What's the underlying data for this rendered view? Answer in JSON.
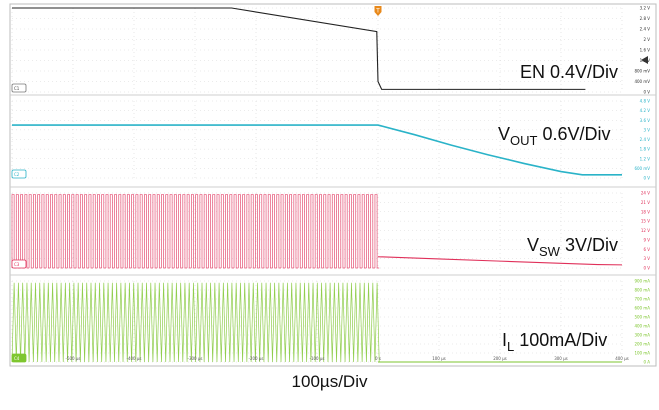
{
  "chart_data": {
    "type": "line",
    "x_unit": "µs",
    "x_ticks": [
      "-500 µs",
      "-400 µs",
      "-300 µs",
      "-200 µs",
      "-100 µs",
      "0 s",
      "100 µs",
      "200 µs",
      "300 µs",
      "400 µs"
    ],
    "timebase": "100µs/Div",
    "channels": [
      {
        "id": "C1",
        "name": "EN",
        "label_main": "EN 0.4V/Div",
        "label_sub": "",
        "label_tail": "",
        "color": "#222222",
        "ticks": [
          "3.2 V",
          "2.8 V",
          "2.4 V",
          "2 V",
          "1.6 V",
          "1.2 V",
          "800 mV",
          "400 mV",
          "0 V"
        ],
        "points": [
          [
            -600,
            3.2
          ],
          [
            -240,
            3.2
          ],
          [
            -2,
            2.3
          ],
          [
            0,
            0.4
          ],
          [
            6,
            0.1
          ],
          [
            340,
            0.1
          ]
        ]
      },
      {
        "id": "C2",
        "name": "VOUT",
        "label_main": "V",
        "label_sub": "OUT",
        "label_tail": " 0.6V/Div",
        "color": "#2ab3c8",
        "ticks": [
          "4.8 V",
          "4.2 V",
          "3.6 V",
          "3 V",
          "2.4 V",
          "1.8 V",
          "1.2 V",
          "600 mV",
          "0 V"
        ],
        "points": [
          [
            -600,
            3.3
          ],
          [
            0,
            3.3
          ],
          [
            60,
            2.7
          ],
          [
            120,
            2.05
          ],
          [
            180,
            1.45
          ],
          [
            240,
            0.9
          ],
          [
            300,
            0.4
          ],
          [
            335,
            0.2
          ],
          [
            400,
            0.2
          ]
        ]
      },
      {
        "id": "C3",
        "name": "VSW",
        "label_main": "V",
        "label_sub": "SW",
        "label_tail": " 3V/Div",
        "color": "#e0305a",
        "ticks": [
          "24 V",
          "21 V",
          "18 V",
          "15 V",
          "12 V",
          "9 V",
          "6 V",
          "3 V",
          "0 V"
        ],
        "switching": {
          "high": 23.5,
          "low": 0,
          "period_us": 7,
          "until": 0
        },
        "points": [
          [
            0,
            3.6
          ],
          [
            100,
            2.9
          ],
          [
            200,
            2.2
          ],
          [
            300,
            1.5
          ],
          [
            360,
            1.1
          ],
          [
            400,
            1.0
          ]
        ]
      },
      {
        "id": "C4",
        "name": "IL",
        "label_main": "I",
        "label_sub": "L",
        "label_tail": " 100mA/Div",
        "color": "#7ec62f",
        "ticks": [
          "900 mA",
          "800 mA",
          "700 mA",
          "600 mA",
          "500 mA",
          "400 mA",
          "300 mA",
          "200 mA",
          "100 mA",
          "0 A"
        ],
        "switching": {
          "high": 880,
          "low": 0,
          "period_us": 7,
          "until": 0
        },
        "points": [
          [
            0,
            0
          ],
          [
            400,
            0
          ]
        ]
      }
    ],
    "grid": true,
    "trigger_marker": "T"
  }
}
